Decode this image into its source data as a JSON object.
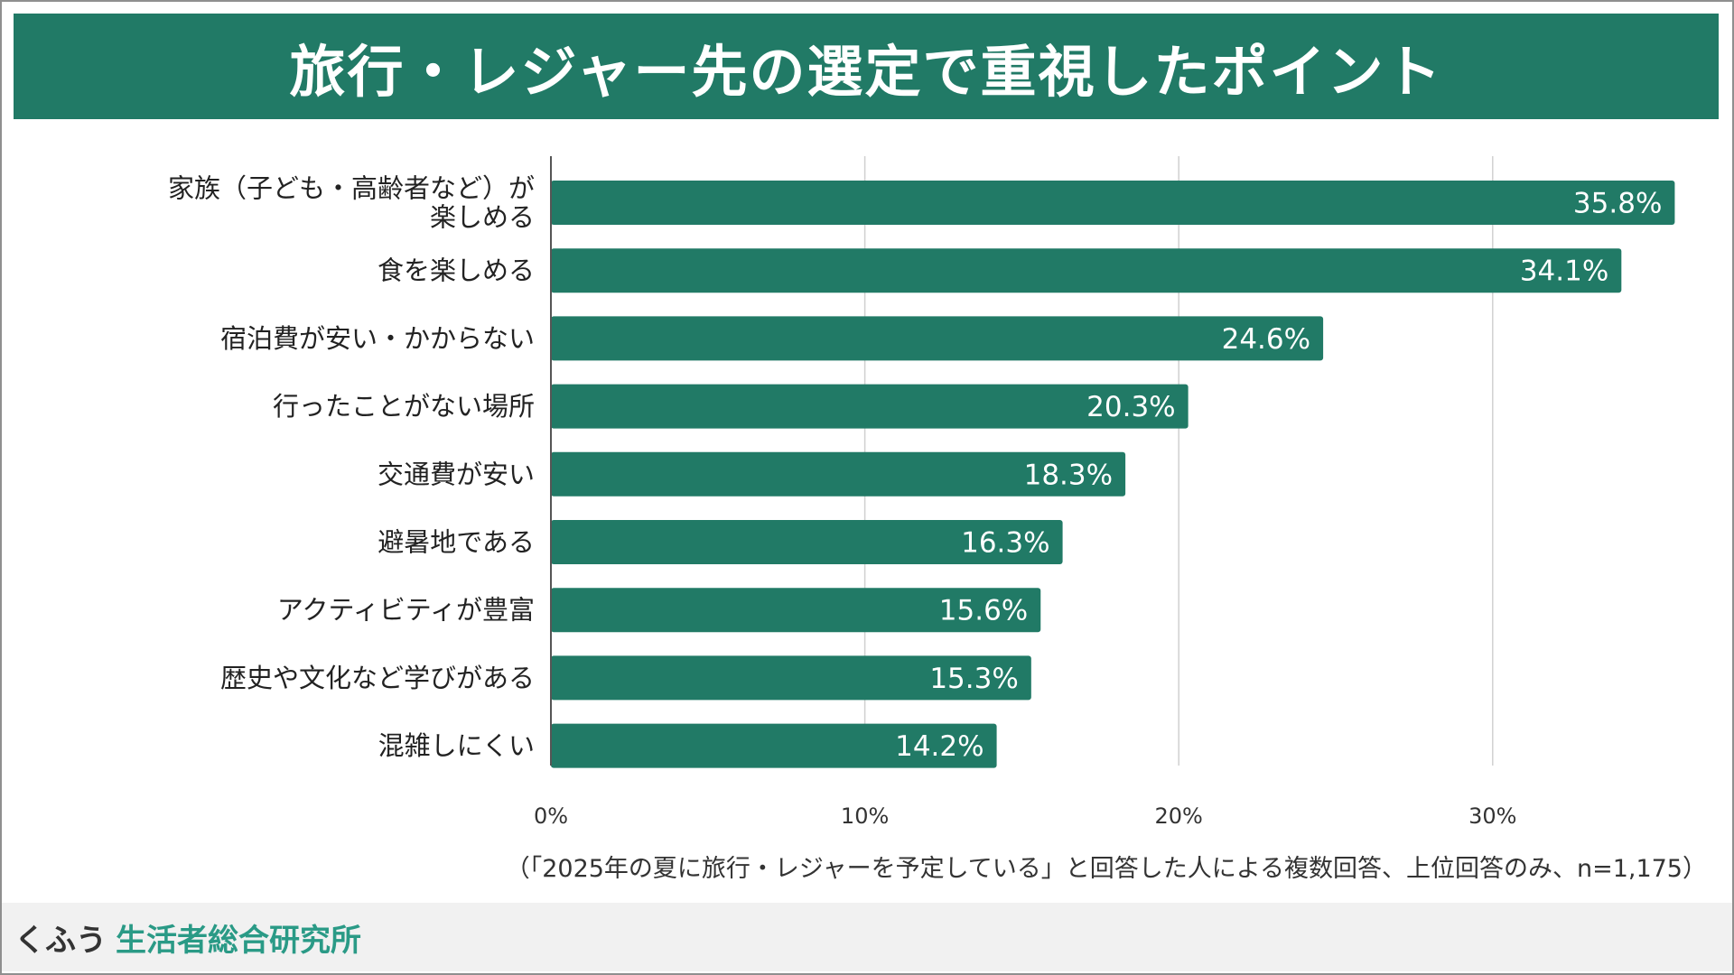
{
  "title": "旅行・レジャー先の選定で重視したポイント",
  "note": "（「2025年の夏に旅行・レジャーを予定している」と回答した人による複数回答、上位回答のみ、n=1,175）",
  "footer": {
    "brand_prefix": "くふう",
    "brand_name": "生活者総合研究所"
  },
  "colors": {
    "bar": "#217a66",
    "title_bg": "#217a66",
    "grid": "#d0d0d0",
    "axis": "#555555",
    "brand": "#2a9a86"
  },
  "chart_data": {
    "type": "bar",
    "orientation": "horizontal",
    "title": "旅行・レジャー先の選定で重視したポイント",
    "xlabel": "",
    "ylabel": "",
    "xlim": [
      0,
      36
    ],
    "grid": true,
    "x_ticks": [
      0,
      10,
      20,
      30
    ],
    "x_tick_labels": [
      "0%",
      "10%",
      "20%",
      "30%"
    ],
    "categories": [
      [
        "家族（子ども・高齢者など）が",
        "楽しめる"
      ],
      [
        "食を楽しめる"
      ],
      [
        "宿泊費が安い・かからない"
      ],
      [
        "行ったことがない場所"
      ],
      [
        "交通費が安い"
      ],
      [
        "避暑地である"
      ],
      [
        "アクティビティが豊富"
      ],
      [
        "歴史や文化など学びがある"
      ],
      [
        "混雑しにくい"
      ]
    ],
    "values": [
      35.8,
      34.1,
      24.6,
      20.3,
      18.3,
      16.3,
      15.6,
      15.3,
      14.2
    ],
    "value_labels": [
      "35.8%",
      "34.1%",
      "24.6%",
      "20.3%",
      "18.3%",
      "16.3%",
      "15.6%",
      "15.3%",
      "14.2%"
    ]
  }
}
